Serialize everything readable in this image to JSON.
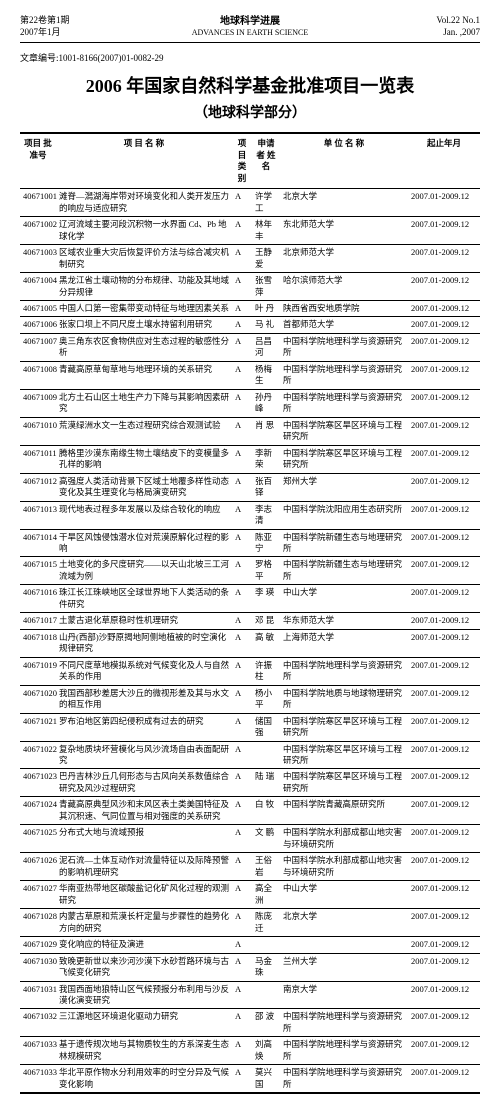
{
  "header": {
    "volume_issue": "第22卷第1期",
    "date_cn": "2007年1月",
    "journal_cn": "地球科学进展",
    "journal_en": "ADVANCES IN EARTH SCIENCE",
    "vol_en": "Vol.22  No.1",
    "date_en": "Jan. ,2007"
  },
  "article_id": "文章编号:1001-8166(2007)01-0082-29",
  "title": "2006 年国家自然科学基金批准项目一览表",
  "subtitle": "（地球科学部分）",
  "columns": [
    "项目\n批准号",
    "项 目 名 称",
    "项目\n类别",
    "申请者\n姓 名",
    "单 位 名 称",
    "起止年月"
  ],
  "rows": [
    [
      "40671001",
      "滩脊—澙湖海岸带对环境变化和人类开发压力的响应与适应研究",
      "A",
      "许学工",
      "北京大学",
      "2007.01-2009.12"
    ],
    [
      "40671002",
      "辽河流域主要河段沉积物一水界面 Cd、Pb 地球化学",
      "A",
      "林年丰",
      "东北师范大学",
      "2007.01-2009.12"
    ],
    [
      "40671003",
      "区域农业重大灾后恢复评价方法与综合减灾机制研究",
      "A",
      "王静爱",
      "北京师范大学",
      "2007.01-2009.12"
    ],
    [
      "40671004",
      "黑龙江省土壤动物的分布规律、功能及其地域分异规律",
      "A",
      "张雪萍",
      "哈尔滨师范大学",
      "2007.01-2009.12"
    ],
    [
      "40671005",
      "中国人口第一密集带变动特征与地理因素关系",
      "A",
      "叶 丹",
      "陕西省西安地质学院",
      "2007.01-2009.12"
    ],
    [
      "40671006",
      "张家口坝上不同尺度土壤水持留利用研究",
      "A",
      "马 礼",
      "首都师范大学",
      "2007.01-2009.12"
    ],
    [
      "40671007",
      "奥三角东农区食物供应对生态过程的敏感性分析",
      "A",
      "吕昌河",
      "中国科学院地理科学与资源研究所",
      "2007.01-2009.12"
    ],
    [
      "40671008",
      "青藏高原草甸草地与地理环境的关系研究",
      "A",
      "杨梅生",
      "中国科学院地理科学与资源研究所",
      "2007.01-2009.12"
    ],
    [
      "40671009",
      "北方土石山区土地生产力下降与其影响因素研究",
      "A",
      "孙丹峰",
      "中国科学院地理科学与资源研究所",
      "2007.01-2009.12"
    ],
    [
      "40671010",
      "荒漠绿洲水文一生态过程研究综合观测试验",
      "A",
      "肖 思",
      "中国科学院寒区旱区环境与工程研究所",
      "2007.01-2009.12"
    ],
    [
      "40671011",
      "腾格里沙漠东南缘生物土壤结皮下的变模量多孔样的影响",
      "A",
      "李新荣",
      "中国科学院寒区旱区环境与工程研究所",
      "2007.01-2009.12"
    ],
    [
      "40671012",
      "高强度人类活动背景下区域土地覆多样性动态变化及其生理变化与格局演变研究",
      "A",
      "张百铎",
      "郑州大学",
      "2007.01-2009.12"
    ],
    [
      "40671013",
      "现代地表过程多年发展以及综合较化的响应",
      "A",
      "李志清",
      "中国科学院沈阳应用生态研究所",
      "2007.01-2009.12"
    ],
    [
      "40671014",
      "干旱区风蚀侵蚀潜水位对荒漠原解化过程的影响",
      "A",
      "陈亚宁",
      "中国科学院新疆生态与地理研究所",
      "2007.01-2009.12"
    ],
    [
      "40671015",
      "土地变化的多尺度研究——以天山北坡三工河流域为例",
      "A",
      "罗格平",
      "中国科学院新疆生态与地理研究所",
      "2007.01-2009.12"
    ],
    [
      "40671016",
      "珠江长江珠峡地区全球世界地下人类活动的条件研究",
      "A",
      "李 瑛",
      "中山大学",
      "2007.01-2009.12"
    ],
    [
      "40671017",
      "土蒙古退化草原稳时性机理研究",
      "A",
      "邓 昆",
      "华东师范大学",
      "2007.01-2009.12"
    ],
    [
      "40671018",
      "山丹(西部)沙野原揭地阿侧地植被的时空演化规律研究",
      "A",
      "高 敏",
      "上海师范大学",
      "2007.01-2009.12"
    ],
    [
      "40671019",
      "不同尺度草地模拟系统对气候变化及人与自然关系的作用",
      "A",
      "许振柱",
      "中国科学院地理科学与资源研究所",
      "2007.01-2009.12"
    ],
    [
      "40671020",
      "我国西部秒差居大沙丘的微视形差及其与水文的相互作用",
      "A",
      "杨小平",
      "中国科学院地质与地球物理研究所",
      "2007.01-2009.12"
    ],
    [
      "40671021",
      "罗布泊地区第四纪侵积成有过去的研究",
      "A",
      "储国强",
      "中国科学院寒区旱区环境与工程研究所",
      "2007.01-2009.12"
    ],
    [
      "40671022",
      "复杂地质块坏营模化与风沙流场自由表面配研究",
      "A",
      "",
      "中国科学院寒区旱区环境与工程研究所",
      "2007.01-2009.12"
    ],
    [
      "40671023",
      "巴丹吉林沙丘几何形态与古风向关系数值综合研究及风沙过程研究",
      "A",
      "陆 瑞",
      "中国科学院寒区旱区环境与工程研究所",
      "2007.01-2009.12"
    ],
    [
      "40671024",
      "青藏高原典型风沙和末风区表土类美国特征及其沉积速、气同位置与相对强度的关系研究",
      "A",
      "白 牧",
      "中国科学院青藏高原研究所",
      "2007.01-2009.12"
    ],
    [
      "40671025",
      "分布式大地与流域预报",
      "A",
      "文 鹏",
      "中国科学院水利部成都山地灾害与环境研究所",
      "2007.01-2009.12"
    ],
    [
      "40671026",
      "泥石流—土体互动作对流量特征以及际降预警的影响机理研究",
      "A",
      "王俗岩",
      "中国科学院水利部成都山地灾害与环境研究所",
      "2007.01-2009.12"
    ],
    [
      "40671027",
      "华南亚热带地区碳酸盐记化矿风化过程的观测研究",
      "A",
      "高全洲",
      "中山大学",
      "2007.01-2009.12"
    ],
    [
      "40671028",
      "内蒙古草原和荒漠长杆定量与步骤性的趋势化方向的研究",
      "A",
      "陈庞迁",
      "北京大学",
      "2007.01-2009.12"
    ],
    [
      "40671029",
      "变化响应的特征及演进",
      "A",
      "",
      "",
      "2007.01-2009.12"
    ],
    [
      "40671030",
      "致晚更新世以来沙河沙漠下水砂哲路环境与古飞候变化研究",
      "A",
      "马金珠",
      "兰州大学",
      "2007.01-2009.12"
    ],
    [
      "40671031",
      "我国西面地狼特山区气候预报分布利用与沙反漠化演变研究",
      "A",
      "",
      "南京大学",
      "2007.01-2009.12"
    ],
    [
      "40671032",
      "三江源地区环境退化驱动力研究",
      "A",
      "邵 波",
      "中国科学院地理科学与资源研究所",
      "2007.01-2009.12"
    ],
    [
      "40671033",
      "基于遗传规次地与其物质牧生的方系深麦生态林规模研究",
      "A",
      "刘高焕",
      "中国科学院地理科学与资源研究所",
      "2007.01-2009.12"
    ],
    [
      "40671033",
      "华北平原作物水分利用效率的时空分异及气候变化影响",
      "A",
      "莫兴国",
      "中国科学院地理科学与资源研究所",
      "2007.01-2009.12"
    ]
  ]
}
